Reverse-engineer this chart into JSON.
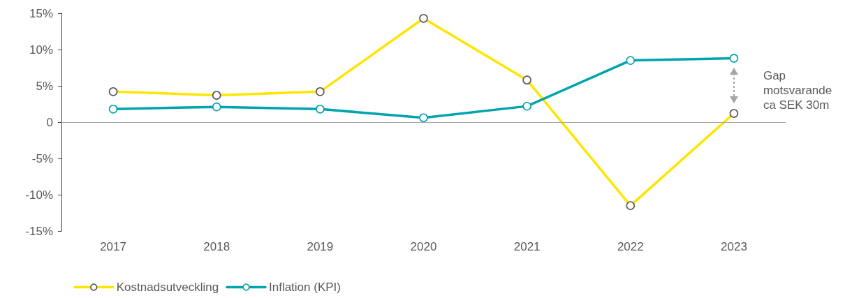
{
  "chart_data": {
    "type": "line",
    "categories": [
      "2017",
      "2018",
      "2019",
      "2020",
      "2021",
      "2022",
      "2023"
    ],
    "series": [
      {
        "name": "Kostnadsutveckling",
        "color": "#ffe600",
        "values": [
          4.2,
          3.7,
          4.2,
          14.3,
          5.8,
          -11.5,
          1.2
        ]
      },
      {
        "name": "Inflation (KPI)",
        "color": "#00a3ae",
        "values": [
          1.8,
          2.1,
          1.8,
          0.6,
          2.2,
          8.5,
          8.8
        ]
      }
    ],
    "ylim": [
      -15,
      15
    ],
    "yticks": [
      {
        "value": -15,
        "label": "-15%"
      },
      {
        "value": -10,
        "label": "-10%"
      },
      {
        "value": -5,
        "label": "-5%"
      },
      0,
      {
        "value": 5,
        "label": "5%"
      },
      {
        "value": 10,
        "label": "10%"
      },
      {
        "value": 15,
        "label": "15%"
      }
    ],
    "grid": false,
    "ref_lines": [
      {
        "axis": "y",
        "value": 0,
        "color": "#a6a6a6"
      }
    ],
    "legend": "bottom left",
    "marker": "circle",
    "line_style": "solid",
    "annotations": [
      "Gap\nmotsvarande\nca SEK 30m"
    ]
  }
}
